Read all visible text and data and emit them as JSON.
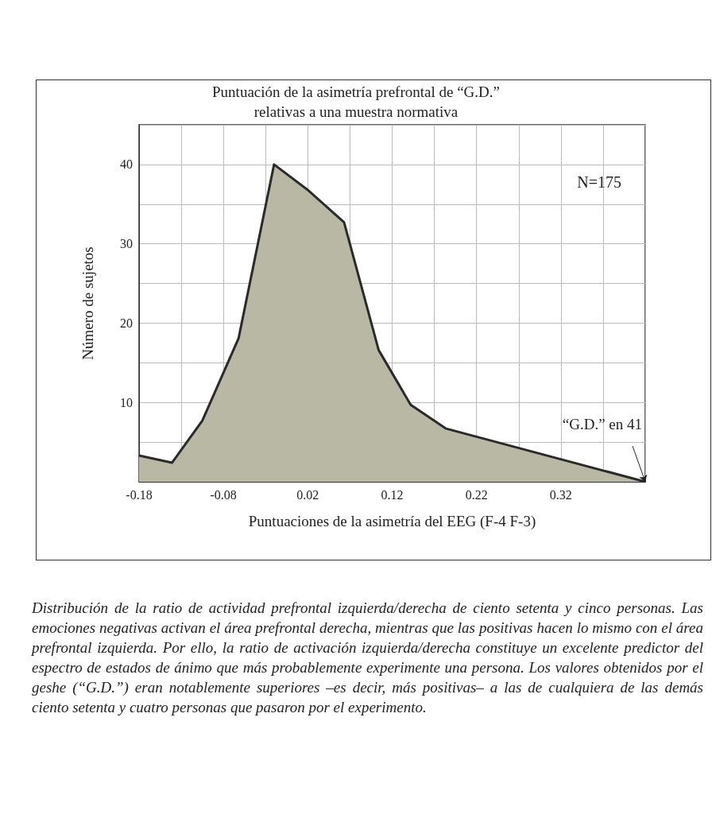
{
  "chart_data": {
    "type": "area",
    "title": "Puntuación de la asimetría prefrontal de “G.D.”\nrelativas a una muestra normativa",
    "xlabel": "Puntuaciones de la asimetría del EEG (F-4 F-3)",
    "ylabel": "Número de sujetos",
    "x": [
      -0.18,
      -0.141,
      -0.105,
      -0.062,
      -0.02,
      0.021,
      0.063,
      0.104,
      0.142,
      0.184,
      0.42
    ],
    "series": [
      {
        "color": "#b8b8a4",
        "values": [
          3.3,
          2.4,
          7.7,
          18.1,
          40,
          36.7,
          32.7,
          16.6,
          9.7,
          6.7,
          0
        ]
      }
    ],
    "xlim": [
      -0.18,
      0.42
    ],
    "xticks": [
      -0.18,
      -0.08,
      0.02,
      0.12,
      0.22,
      0.32
    ],
    "ylim": [
      0,
      45
    ],
    "yticks": [
      10,
      20,
      30,
      40
    ],
    "grid": true,
    "marker": "none",
    "annotations": [
      "N=175",
      {
        "text": "“G.D.” en 41",
        "x": 0.42,
        "y": 0
      },
      "Distribución de la ratio de actividad prefrontal izquierda/derecha de ciento setenta y cinco personas. Las emociones negativas activan el área prefrontal derecha, mientras que las positivas hacen lo mismo con el área prefrontal izquierda. Por ello, la ratio de activación izquierda/derecha constituye un excelente predictor del espectro de estados de ánimo que más probablemente experimente una persona. Los valores obtenidos por el geshe (“G.D.”) eran notablemente superiores –es decir, más positivas– a las de cualquiera de las demás ciento setenta y cuatro personas que pasaron por el experimento."
    ]
  }
}
